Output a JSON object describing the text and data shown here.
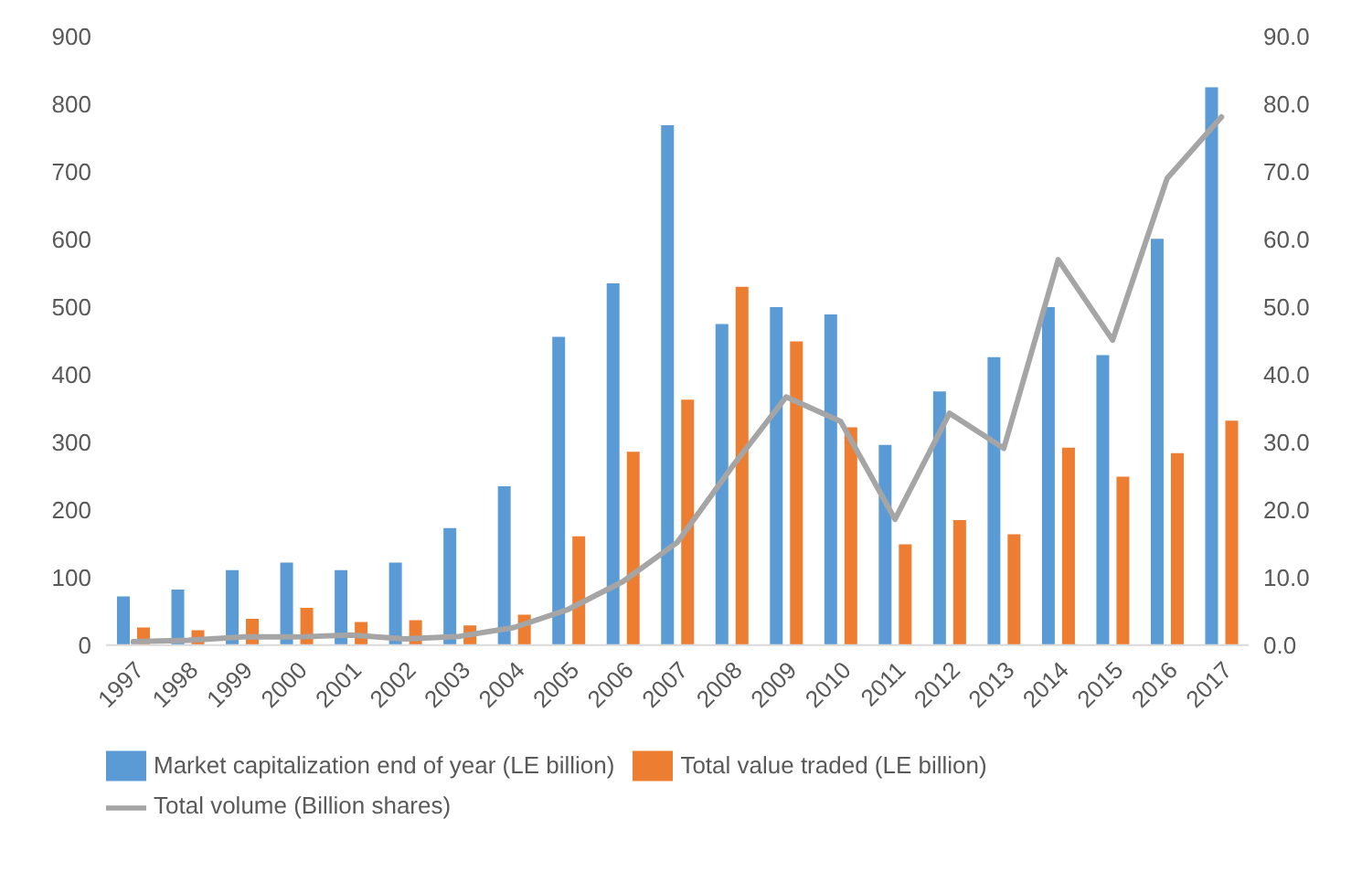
{
  "chart_data": {
    "type": "bar",
    "categories": [
      "1997",
      "1998",
      "1999",
      "2000",
      "2001",
      "2002",
      "2003",
      "2004",
      "2005",
      "2006",
      "2007",
      "2008",
      "2009",
      "2010",
      "2011",
      "2012",
      "2013",
      "2014",
      "2015",
      "2016",
      "2017"
    ],
    "series": [
      {
        "name": "Market capitalization end of year (LE billion)",
        "color": "#5b9bd5",
        "values": [
          72,
          82,
          111,
          122,
          111,
          122,
          173,
          235,
          456,
          535,
          769,
          475,
          500,
          489,
          296,
          375,
          426,
          500,
          429,
          601,
          825
        ]
      },
      {
        "name": "Total value traded (LE billion)",
        "color": "#ed7d31",
        "values": [
          26,
          22,
          39,
          55,
          34,
          37,
          29,
          45,
          161,
          286,
          363,
          530,
          449,
          322,
          149,
          185,
          164,
          292,
          249,
          284,
          332
        ]
      },
      {
        "name": "Total volume  (Billion shares)",
        "type": "line",
        "axis": "y2",
        "color": "#a5a5a5",
        "values": [
          0.5,
          0.7,
          1.2,
          1.2,
          1.5,
          0.9,
          1.3,
          2.6,
          5.3,
          9.4,
          15.2,
          26.3,
          36.7,
          33.1,
          18.6,
          34.3,
          29.1,
          57.0,
          45.1,
          69.0,
          78.1
        ]
      }
    ],
    "ylim": [
      0,
      900
    ],
    "yticks": [
      0,
      100,
      200,
      300,
      400,
      500,
      600,
      700,
      800,
      900
    ],
    "y2lim": [
      0,
      90
    ],
    "y2ticks": [
      {
        "value": 0,
        "label": "0.0"
      },
      {
        "value": 10,
        "label": "10.0"
      },
      {
        "value": 20,
        "label": "20.0"
      },
      {
        "value": 30,
        "label": "30.0"
      },
      {
        "value": 40,
        "label": "40.0"
      },
      {
        "value": 50,
        "label": "50.0"
      },
      {
        "value": 60,
        "label": "60.0"
      },
      {
        "value": 70,
        "label": "70.0"
      },
      {
        "value": 80,
        "label": "80.0"
      },
      {
        "value": 90,
        "label": "90.0"
      }
    ],
    "grid": false,
    "legend": "bottom left",
    "marker": "none"
  }
}
